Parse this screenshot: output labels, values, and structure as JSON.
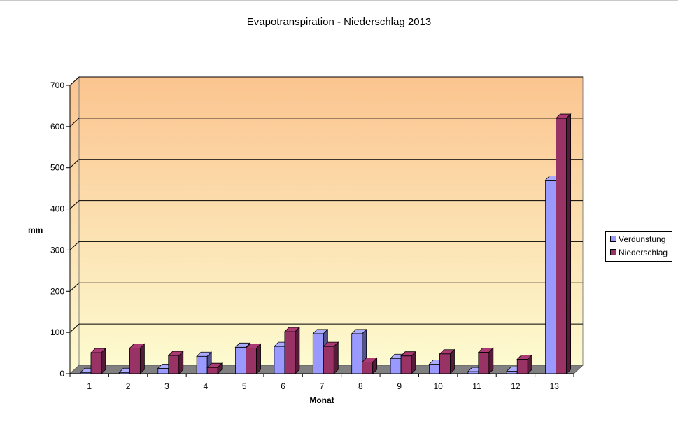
{
  "chart_data": {
    "type": "bar",
    "title": "Evapotranspiration - Niederschlag 2013",
    "xlabel": "Monat",
    "ylabel": "mm",
    "ylim": [
      0,
      700
    ],
    "yticks": [
      "0",
      "100",
      "200",
      "300",
      "400",
      "500",
      "600",
      "700"
    ],
    "grid": true,
    "legend_position": "right",
    "background_gradient": [
      "#fdfbd0",
      "#fbc48f"
    ],
    "categories": [
      "1",
      "2",
      "3",
      "4",
      "5",
      "6",
      "7",
      "8",
      "9",
      "10",
      "11",
      "12",
      "13"
    ],
    "series": [
      {
        "name": "Verdunstung",
        "color": "#9999ff",
        "values": [
          3,
          3,
          13,
          42,
          64,
          66,
          97,
          97,
          37,
          23,
          5,
          6,
          470
        ]
      },
      {
        "name": "Niederschlag",
        "color": "#993366",
        "values": [
          51,
          62,
          44,
          15,
          62,
          102,
          66,
          28,
          43,
          48,
          52,
          35,
          620
        ]
      }
    ]
  }
}
